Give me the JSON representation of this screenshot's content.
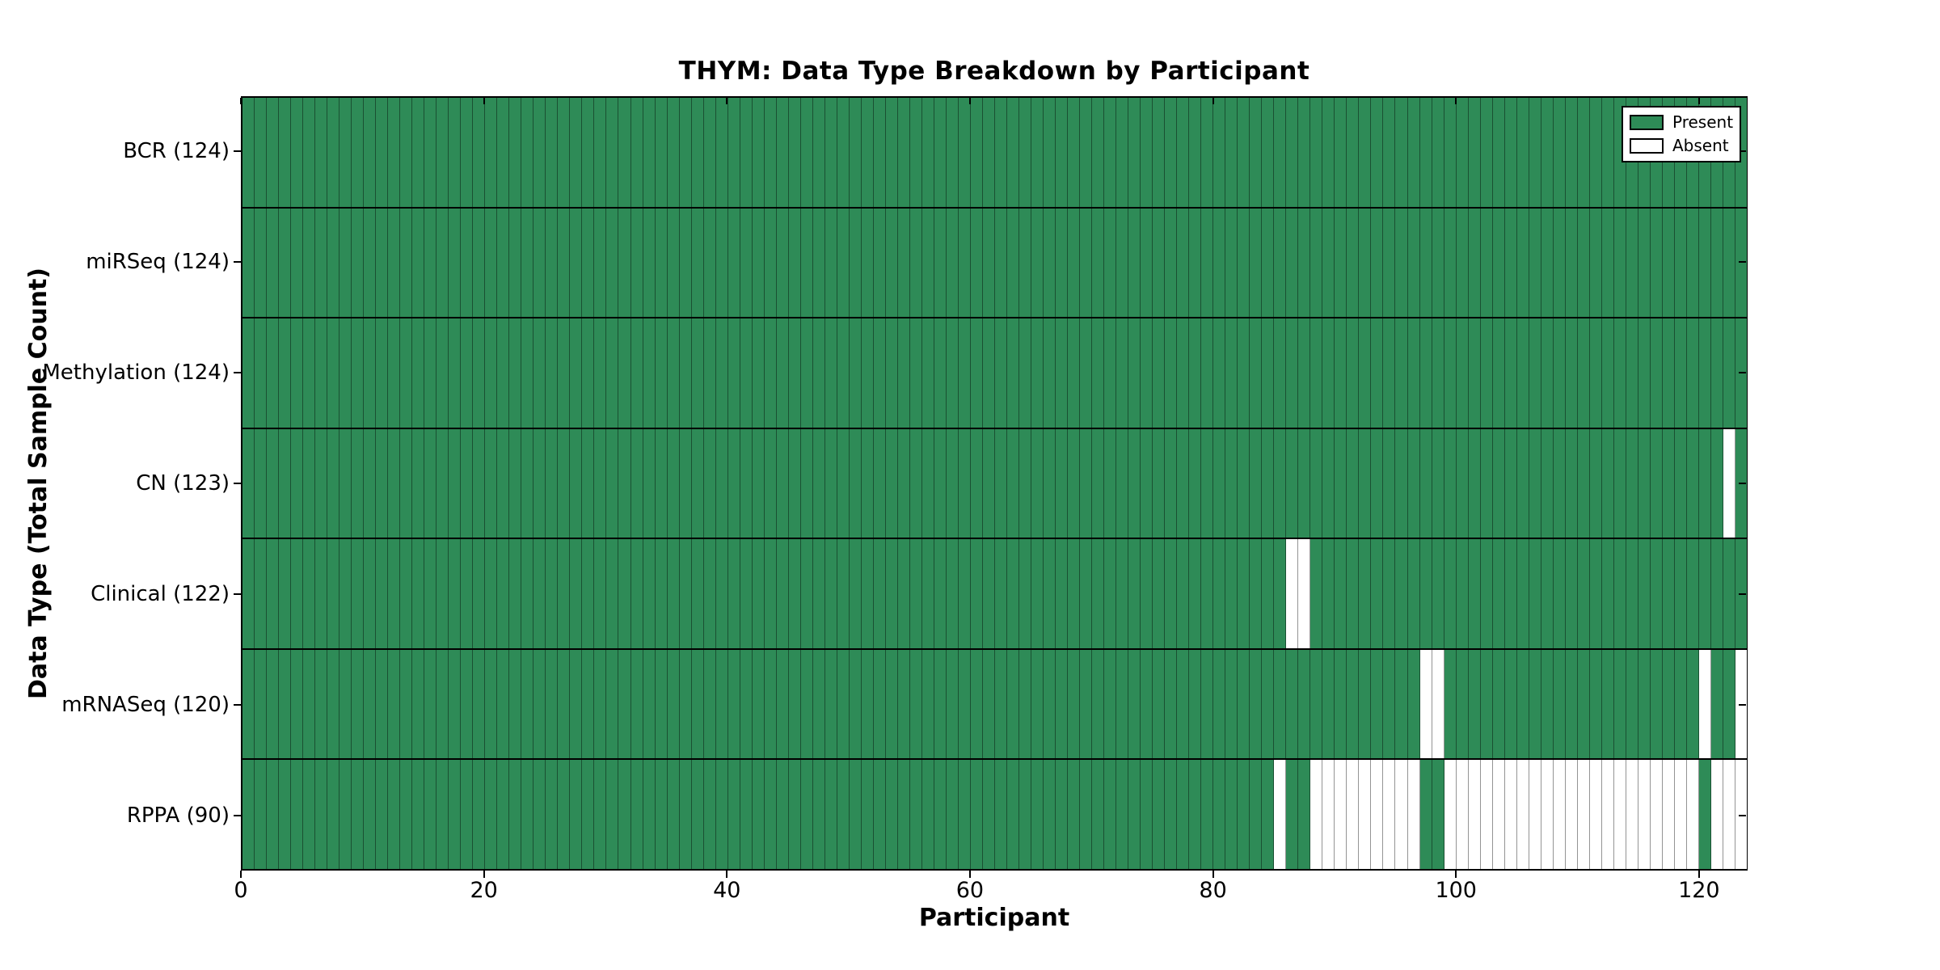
{
  "colors": {
    "present": "#2e8b57",
    "absent": "#ffffff",
    "cell_edge": "rgba(0,0,0,0.42)",
    "row_divider": "#000000",
    "axis": "#000000",
    "background": "#ffffff"
  },
  "chart_data": {
    "type": "heatmap",
    "title": "THYM: Data Type Breakdown by Participant",
    "xlabel": "Participant",
    "ylabel": "Data Type (Total Sample Count)",
    "n_participants": 124,
    "xlim": [
      0,
      124
    ],
    "x_ticks": [
      0,
      20,
      40,
      60,
      80,
      100,
      120
    ],
    "grid": false,
    "legend_position": "upper right",
    "legend_items": [
      {
        "label": "Present",
        "color": "#2e8b57"
      },
      {
        "label": "Absent",
        "color": "#ffffff"
      }
    ],
    "rows": [
      {
        "label": "BCR (124)",
        "data_type": "BCR",
        "present_count": 124,
        "absent_participants": []
      },
      {
        "label": "miRSeq (124)",
        "data_type": "miRSeq",
        "present_count": 124,
        "absent_participants": []
      },
      {
        "label": "Methylation (124)",
        "data_type": "Methylation",
        "present_count": 124,
        "absent_participants": []
      },
      {
        "label": "CN (123)",
        "data_type": "CN",
        "present_count": 123,
        "absent_participants": [
          122
        ]
      },
      {
        "label": "Clinical (122)",
        "data_type": "Clinical",
        "present_count": 122,
        "absent_participants": [
          86,
          87
        ]
      },
      {
        "label": "mRNASeq (120)",
        "data_type": "mRNASeq",
        "present_count": 120,
        "absent_participants": [
          97,
          98,
          120,
          123
        ]
      },
      {
        "label": "RPPA (90)",
        "data_type": "RPPA",
        "present_count": 90,
        "absent_participants": [
          85,
          88,
          89,
          90,
          91,
          92,
          93,
          94,
          95,
          96,
          99,
          100,
          101,
          102,
          103,
          104,
          105,
          106,
          107,
          108,
          109,
          110,
          111,
          112,
          113,
          114,
          115,
          116,
          117,
          118,
          119,
          121,
          122,
          123
        ]
      }
    ]
  }
}
